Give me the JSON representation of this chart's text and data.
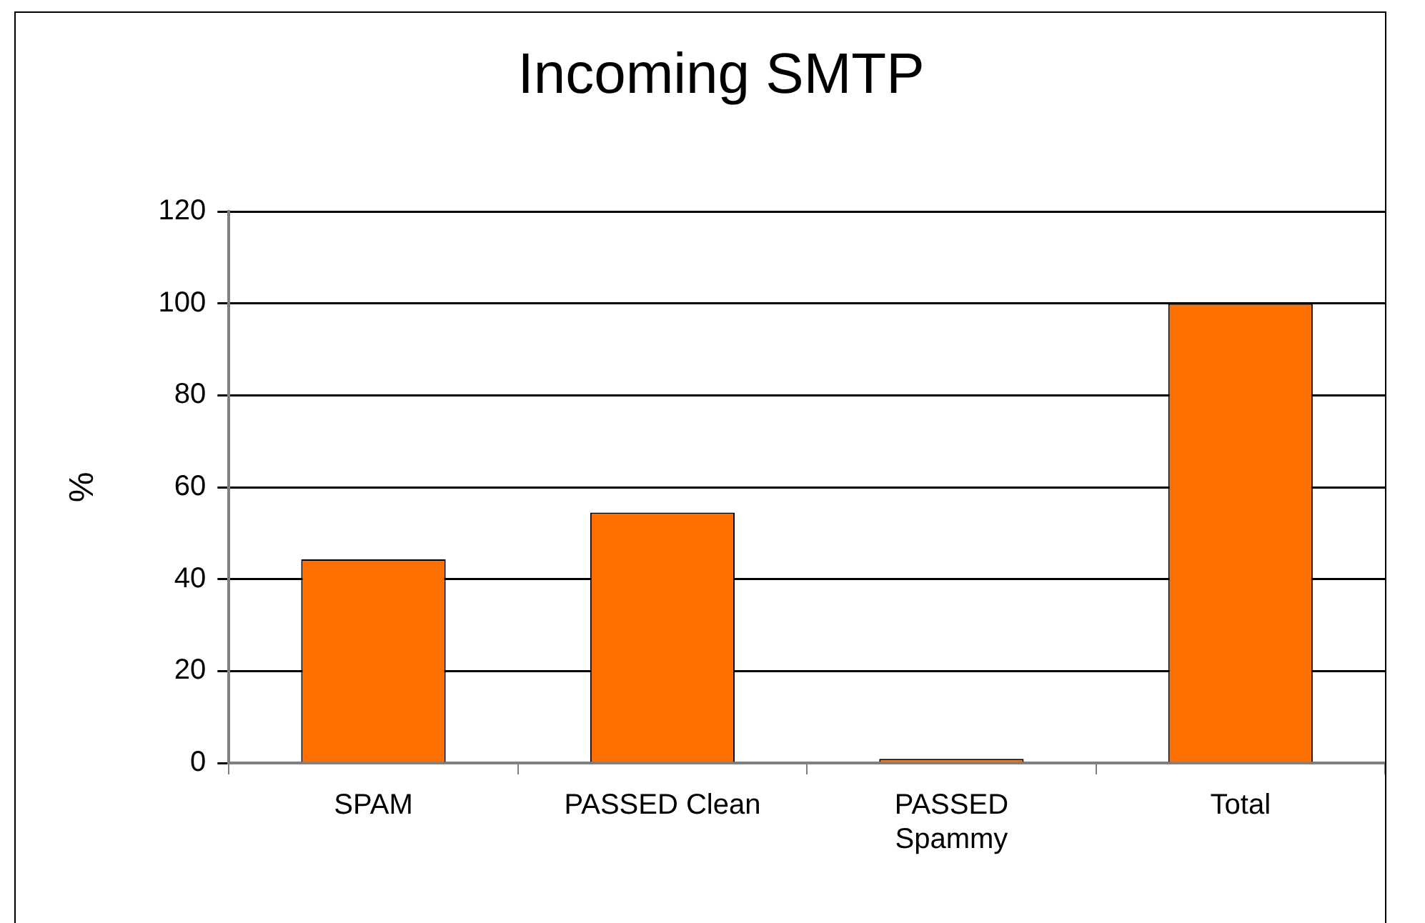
{
  "chart_data": {
    "type": "bar",
    "title": "Incoming SMTP",
    "ylabel": "%",
    "categories": [
      "SPAM",
      "PASSED Clean",
      "PASSED\nSpammy",
      "Total"
    ],
    "values": [
      44.3,
      54.5,
      0.9,
      100
    ],
    "color": "#ff7000",
    "ylim": [
      0,
      120
    ],
    "yticks": [
      0,
      20,
      40,
      60,
      80,
      100,
      120
    ],
    "grid": "y",
    "legend": false
  }
}
